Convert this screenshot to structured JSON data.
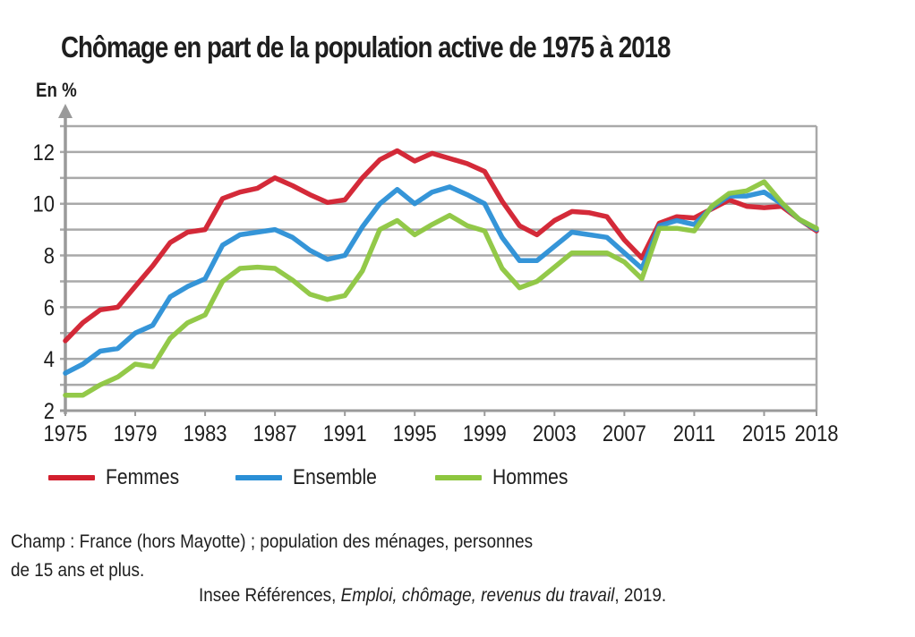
{
  "chart_data": {
    "type": "line",
    "title": "Chômage en part de la population active de 1975 à 2018",
    "ylabel": "En %",
    "xlabel": "",
    "ylim": [
      2,
      13
    ],
    "yticks": [
      2,
      4,
      6,
      8,
      10,
      12
    ],
    "grid": true,
    "grid_step": 1,
    "xlim": [
      1975,
      2018
    ],
    "xtick_labels": [
      "1975",
      "1979",
      "1983",
      "1987",
      "1991",
      "1995",
      "1999",
      "2003",
      "2007",
      "2011",
      "2015",
      "2018"
    ],
    "x": [
      1975,
      1976,
      1977,
      1978,
      1979,
      1980,
      1981,
      1982,
      1983,
      1984,
      1985,
      1986,
      1987,
      1988,
      1989,
      1990,
      1991,
      1992,
      1993,
      1994,
      1995,
      1996,
      1997,
      1998,
      1999,
      2000,
      2001,
      2002,
      2003,
      2004,
      2005,
      2006,
      2007,
      2008,
      2009,
      2010,
      2011,
      2012,
      2013,
      2014,
      2015,
      2016,
      2017,
      2018
    ],
    "series": [
      {
        "name": "Femmes",
        "color": "#d21f2e",
        "values": [
          4.7,
          5.4,
          5.9,
          6.0,
          6.8,
          7.6,
          8.5,
          8.9,
          9.0,
          10.2,
          10.45,
          10.6,
          11.0,
          10.7,
          10.35,
          10.05,
          10.15,
          11.0,
          11.7,
          12.05,
          11.65,
          11.95,
          11.75,
          11.55,
          11.25,
          10.1,
          9.15,
          8.8,
          9.35,
          9.7,
          9.65,
          9.5,
          8.6,
          7.9,
          9.25,
          9.5,
          9.45,
          9.8,
          10.15,
          9.9,
          9.85,
          9.9,
          9.4,
          8.95
        ]
      },
      {
        "name": "Ensemble",
        "color": "#2a8fd6",
        "values": [
          3.45,
          3.8,
          4.3,
          4.4,
          5.0,
          5.3,
          6.4,
          6.8,
          7.1,
          8.4,
          8.8,
          8.9,
          9.0,
          8.7,
          8.2,
          7.85,
          8.0,
          9.1,
          10.0,
          10.55,
          10.0,
          10.45,
          10.65,
          10.35,
          10.0,
          8.7,
          7.8,
          7.8,
          8.35,
          8.9,
          8.8,
          8.7,
          8.1,
          7.5,
          9.15,
          9.35,
          9.2,
          9.85,
          10.3,
          10.3,
          10.45,
          10.0,
          9.4,
          9.0
        ]
      },
      {
        "name": "Hommes",
        "color": "#8dc63f",
        "values": [
          2.6,
          2.6,
          3.0,
          3.3,
          3.8,
          3.7,
          4.8,
          5.4,
          5.7,
          7.0,
          7.5,
          7.55,
          7.5,
          7.05,
          6.5,
          6.3,
          6.45,
          7.4,
          9.0,
          9.35,
          8.8,
          9.2,
          9.55,
          9.15,
          8.95,
          7.5,
          6.75,
          7.0,
          7.55,
          8.1,
          8.1,
          8.1,
          7.75,
          7.1,
          9.05,
          9.05,
          8.95,
          9.9,
          10.4,
          10.5,
          10.85,
          10.05,
          9.4,
          9.05
        ]
      }
    ],
    "legend": "bottom-left"
  },
  "legend": [
    {
      "label": "Femmes",
      "color": "#d21f2e"
    },
    {
      "label": "Ensemble",
      "color": "#2a8fd6"
    },
    {
      "label": "Hommes",
      "color": "#8dc63f"
    }
  ],
  "notes": {
    "line1": "Champ : France (hors Mayotte) ; population des ménages, personnes",
    "line2": "de 15 ans et plus.",
    "source_prefix": "Insee Références, ",
    "source_title": "Emploi, chômage, revenus du travail",
    "source_suffix": ", 2019."
  }
}
